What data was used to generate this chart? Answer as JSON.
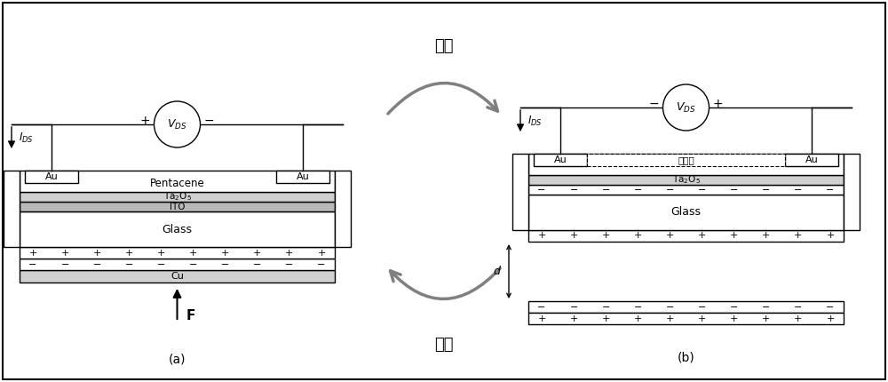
{
  "bg_color": "#ffffff",
  "border_color": "#000000",
  "title_release": "释放",
  "title_press": "按压",
  "label_a": "(a)",
  "label_b": "(b)",
  "label_zqz": "增强区",
  "arrow_color": "#808080",
  "fig_w": 10.0,
  "fig_h": 4.3,
  "dpi": 100
}
